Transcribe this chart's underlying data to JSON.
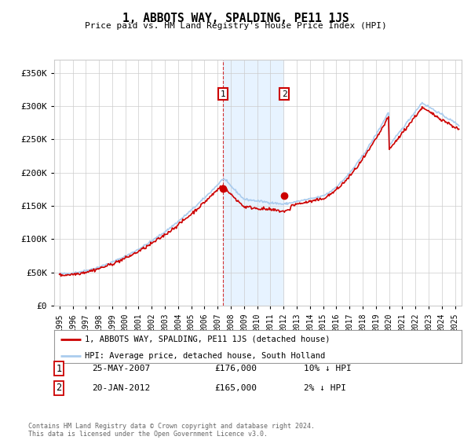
{
  "title": "1, ABBOTS WAY, SPALDING, PE11 1JS",
  "subtitle": "Price paid vs. HM Land Registry's House Price Index (HPI)",
  "legend_line1": "1, ABBOTS WAY, SPALDING, PE11 1JS (detached house)",
  "legend_line2": "HPI: Average price, detached house, South Holland",
  "transaction1_date": "25-MAY-2007",
  "transaction1_price": "£176,000",
  "transaction1_hpi": "10% ↓ HPI",
  "transaction2_date": "20-JAN-2012",
  "transaction2_price": "£165,000",
  "transaction2_hpi": "2% ↓ HPI",
  "footer": "Contains HM Land Registry data © Crown copyright and database right 2024.\nThis data is licensed under the Open Government Licence v3.0.",
  "price_color": "#cc0000",
  "hpi_color": "#aaccee",
  "shade_color": "#ddeeff",
  "ylim": [
    0,
    370000
  ],
  "yticks": [
    0,
    50000,
    100000,
    150000,
    200000,
    250000,
    300000,
    350000
  ],
  "xlim_start": 1994.6,
  "xlim_end": 2025.5,
  "transaction1_x": 2007.4,
  "transaction1_y": 176000,
  "transaction2_x": 2012.05,
  "transaction2_y": 165000,
  "background_color": "#ffffff",
  "grid_color": "#cccccc"
}
